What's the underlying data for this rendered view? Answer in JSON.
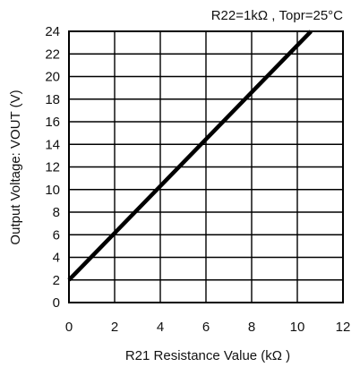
{
  "chart_data": {
    "type": "line",
    "title": "",
    "annotation": "R22=1kΩ , Topr=25°C",
    "xlabel": "R21 Resistance Value (kΩ )",
    "ylabel": "Output Voltage: VOUT (V)",
    "xlim": [
      0,
      12
    ],
    "ylim": [
      0,
      24
    ],
    "xticks": [
      "0",
      "2",
      "4",
      "6",
      "8",
      "10",
      "12"
    ],
    "yticks": [
      "0",
      "2",
      "4",
      "6",
      "8",
      "10",
      "12",
      "14",
      "16",
      "18",
      "20",
      "22",
      "24"
    ],
    "grid": true,
    "series": [
      {
        "x": [
          0,
          10.6
        ],
        "y": [
          2,
          24
        ],
        "color": "#000000"
      }
    ]
  }
}
